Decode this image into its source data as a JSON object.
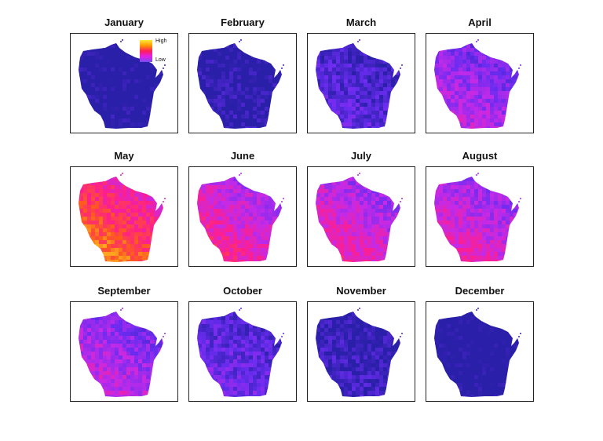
{
  "legend": {
    "high_label": "High",
    "low_label": "Low"
  },
  "color_scale": [
    "#2a1fa8",
    "#6a2cf0",
    "#c42ae8",
    "#ff1e8c",
    "#ff5a1e",
    "#ffd21e"
  ],
  "panels": [
    {
      "month": "January",
      "level": 0.08
    },
    {
      "month": "February",
      "level": 0.12
    },
    {
      "month": "March",
      "level": 0.25
    },
    {
      "month": "April",
      "level": 0.45
    },
    {
      "month": "May",
      "level": 0.85
    },
    {
      "month": "June",
      "level": 0.62
    },
    {
      "month": "July",
      "level": 0.58
    },
    {
      "month": "August",
      "level": 0.56
    },
    {
      "month": "September",
      "level": 0.48
    },
    {
      "month": "October",
      "level": 0.3
    },
    {
      "month": "November",
      "level": 0.18
    },
    {
      "month": "December",
      "level": 0.06
    }
  ]
}
